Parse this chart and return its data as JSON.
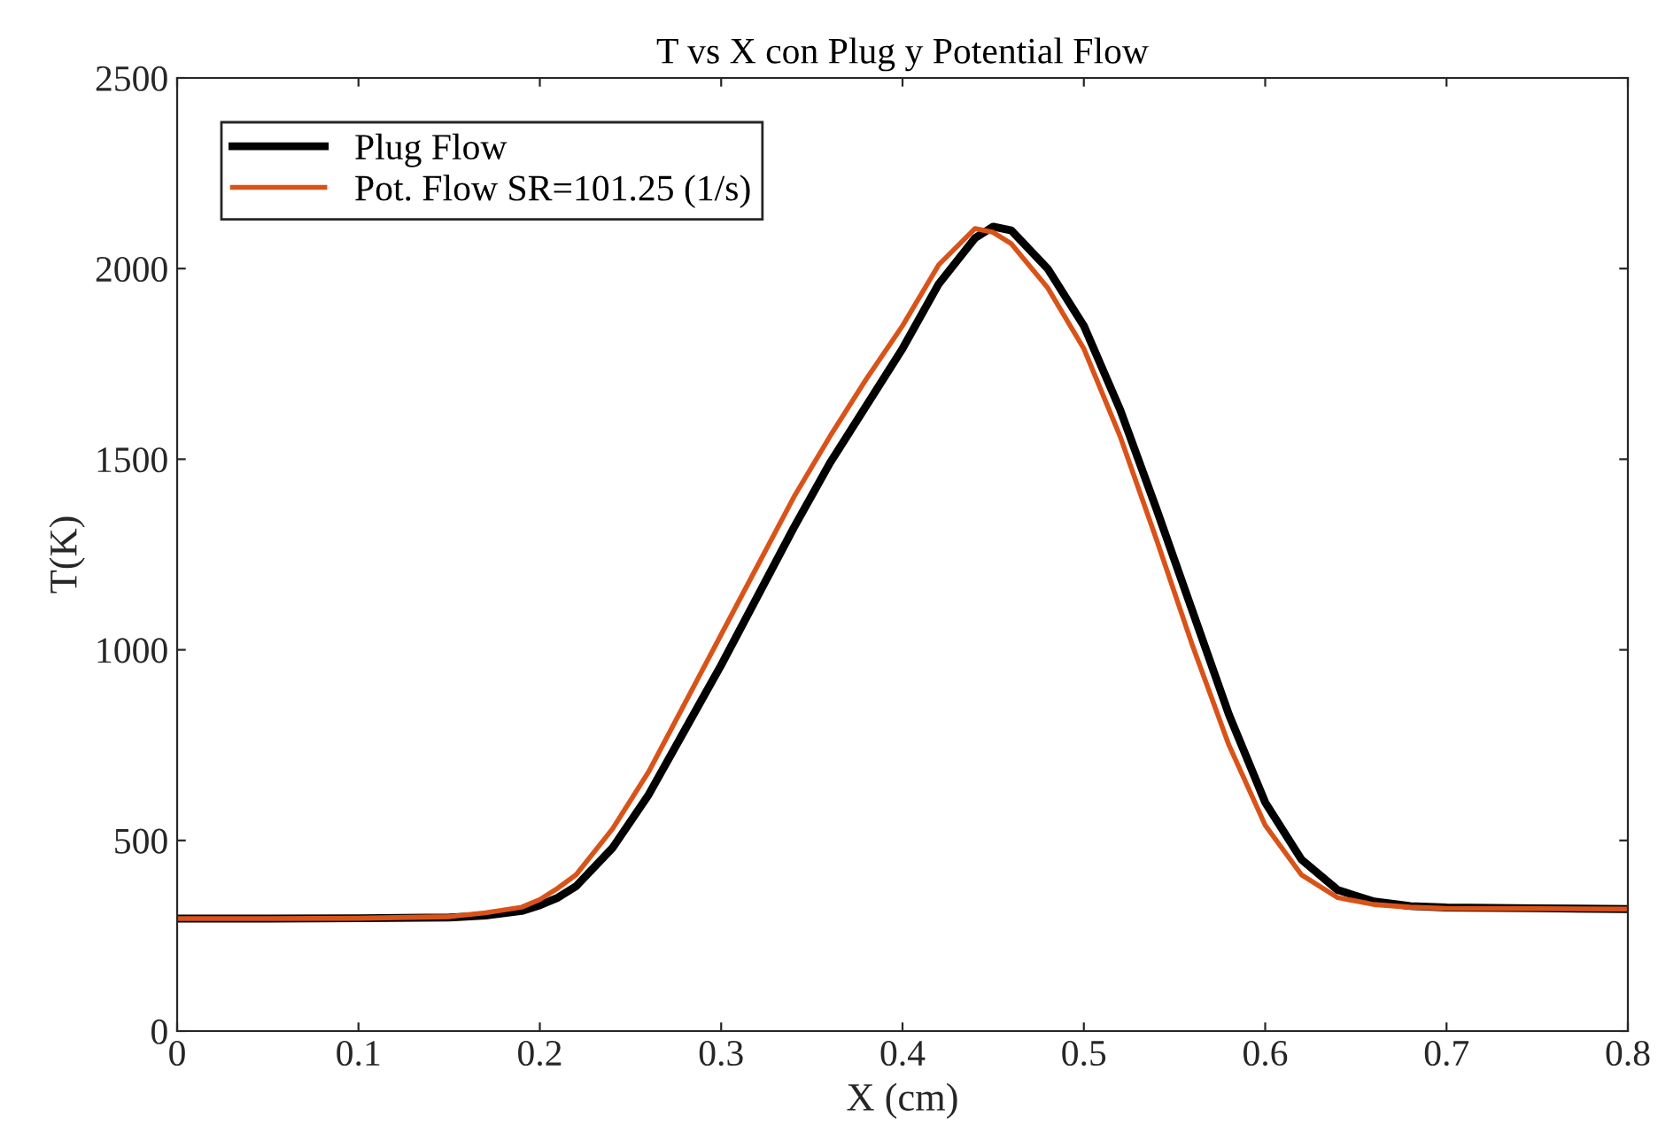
{
  "chart_data": {
    "type": "line",
    "title": "T vs X con Plug y Potential Flow",
    "xlabel": "X (cm)",
    "ylabel": "T(K)",
    "xlim": [
      0,
      0.8
    ],
    "xticks": [
      0,
      0.1,
      0.2,
      0.3,
      0.4,
      0.5,
      0.6,
      0.7,
      0.8
    ],
    "ylim": [
      0,
      2500
    ],
    "yticks": [
      0,
      500,
      1000,
      1500,
      2000,
      2500
    ],
    "grid": false,
    "legend": "top left",
    "marker": "none",
    "line_style": "solid",
    "x": [
      0,
      0.05,
      0.1,
      0.15,
      0.17,
      0.19,
      0.2,
      0.21,
      0.22,
      0.24,
      0.26,
      0.28,
      0.3,
      0.32,
      0.34,
      0.36,
      0.38,
      0.4,
      0.42,
      0.44,
      0.45,
      0.46,
      0.48,
      0.5,
      0.52,
      0.54,
      0.56,
      0.58,
      0.6,
      0.62,
      0.64,
      0.66,
      0.68,
      0.7,
      0.75,
      0.8
    ],
    "series": [
      {
        "name": "Plug Flow",
        "color": "#000000",
        "values": [
          295,
          295,
          296,
          298,
          303,
          315,
          330,
          350,
          380,
          480,
          620,
          790,
          960,
          1140,
          1320,
          1490,
          1640,
          1790,
          1960,
          2080,
          2110,
          2100,
          2000,
          1850,
          1630,
          1370,
          1100,
          830,
          600,
          450,
          370,
          340,
          328,
          324,
          322,
          320
        ]
      },
      {
        "name": "Pot. Flow SR=101.25 (1/s)",
        "color": "#d95319",
        "values": [
          295,
          295,
          296,
          300,
          310,
          325,
          345,
          375,
          410,
          530,
          680,
          860,
          1040,
          1220,
          1400,
          1560,
          1710,
          1850,
          2010,
          2105,
          2095,
          2065,
          1950,
          1790,
          1560,
          1290,
          1010,
          750,
          540,
          410,
          350,
          332,
          325,
          322,
          321,
          320
        ]
      }
    ]
  }
}
